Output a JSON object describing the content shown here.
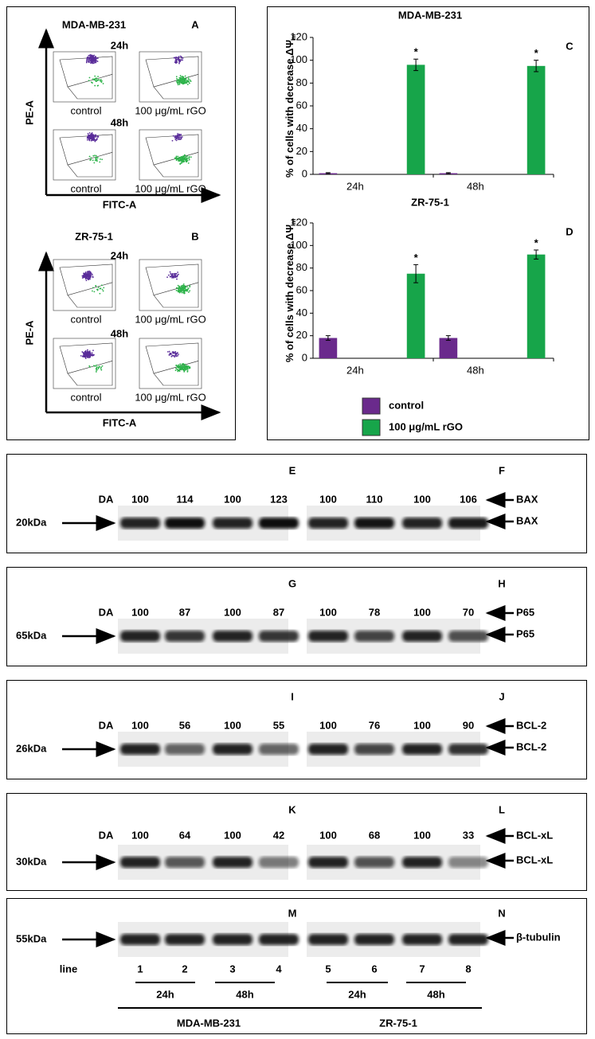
{
  "flow": [
    {
      "cell_line": "MDA-MB-231",
      "letter": "A",
      "times": [
        "24h",
        "48h"
      ],
      "conditions": [
        "control",
        "100 μg/mL rGO"
      ],
      "y_label": "PE-A",
      "x_label": "FITC-A"
    },
    {
      "cell_line": "ZR-75-1",
      "letter": "B",
      "times": [
        "24h",
        "48h"
      ],
      "conditions": [
        "control",
        "100 μg/mL rGO"
      ],
      "y_label": "PE-A",
      "x_label": "FITC-A"
    }
  ],
  "chart_data": [
    {
      "type": "bar",
      "title": "MDA-MB-231",
      "letter": "C",
      "y_label": "% of cells with decrease ΔΨ",
      "y_label_sub": "m",
      "categories": [
        "24h",
        "48h"
      ],
      "ylim": [
        0,
        120
      ],
      "yticks": [
        0,
        20,
        40,
        60,
        80,
        100,
        120
      ],
      "series": [
        {
          "name": "control",
          "color": "#6a2a8c",
          "values": [
            1,
            1
          ],
          "errors": [
            0.5,
            0.5
          ]
        },
        {
          "name": "100 μg/mL rGO",
          "color": "#17a54a",
          "values": [
            96,
            95
          ],
          "errors": [
            5,
            5
          ],
          "markers": [
            "*",
            "*"
          ]
        }
      ]
    },
    {
      "type": "bar",
      "title": "ZR-75-1",
      "letter": "D",
      "y_label": "% of cells with decrease ΔΨ",
      "y_label_sub": "m",
      "categories": [
        "24h",
        "48h"
      ],
      "ylim": [
        0,
        120
      ],
      "yticks": [
        0,
        20,
        40,
        60,
        80,
        100,
        120
      ],
      "series": [
        {
          "name": "control",
          "color": "#6a2a8c",
          "values": [
            18,
            18
          ],
          "errors": [
            2,
            2
          ]
        },
        {
          "name": "100 μg/mL rGO",
          "color": "#17a54a",
          "values": [
            75,
            92
          ],
          "errors": [
            8,
            4
          ],
          "markers": [
            "*",
            "*"
          ]
        }
      ]
    }
  ],
  "blots": [
    {
      "letters": [
        "E",
        "F"
      ],
      "marker": "20kDa",
      "da_label": "DA",
      "da": [
        100,
        114,
        100,
        123,
        100,
        110,
        100,
        106
      ],
      "protein": "BAX"
    },
    {
      "letters": [
        "G",
        "H"
      ],
      "marker": "65kDa",
      "da_label": "DA",
      "da": [
        100,
        87,
        100,
        87,
        100,
        78,
        100,
        70
      ],
      "protein": "P65"
    },
    {
      "letters": [
        "I",
        "J"
      ],
      "marker": "26kDa",
      "da_label": "DA",
      "da": [
        100,
        56,
        100,
        55,
        100,
        76,
        100,
        90
      ],
      "protein": "BCL-2"
    },
    {
      "letters": [
        "K",
        "L"
      ],
      "marker": "30kDa",
      "da_label": "DA",
      "da": [
        100,
        64,
        100,
        42,
        100,
        68,
        100,
        33
      ],
      "protein": "BCL-xL"
    },
    {
      "letters": [
        "M",
        "N"
      ],
      "marker": "55kDa",
      "protein": "β-tubulin"
    }
  ],
  "lanes": {
    "label": "line",
    "numbers": [
      "1",
      "2",
      "3",
      "4",
      "5",
      "6",
      "7",
      "8"
    ],
    "times": [
      "24h",
      "48h",
      "24h",
      "48h"
    ],
    "cell_lines": [
      "MDA-MB-231",
      "ZR-75-1"
    ]
  }
}
